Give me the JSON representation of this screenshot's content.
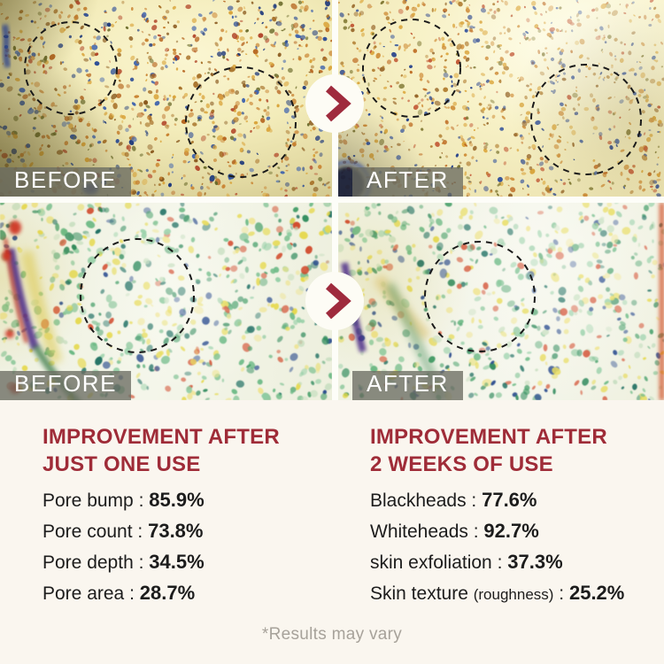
{
  "figures": [
    {
      "label": "BEFORE"
    },
    {
      "label": "AFTER"
    },
    {
      "label": "BEFORE"
    },
    {
      "label": "AFTER"
    }
  ],
  "arrow": {
    "icon": "chevron-right"
  },
  "separator": " : ",
  "panels": {
    "left": {
      "title_line1": "IMPROVEMENT AFTER",
      "title_line2": "JUST ONE USE",
      "rows": [
        {
          "label": "Pore bump",
          "value": "85.9%"
        },
        {
          "label": "Pore count",
          "value": "73.8%"
        },
        {
          "label": "Pore depth",
          "value": "34.5%"
        },
        {
          "label": "Pore area",
          "value": "28.7%"
        }
      ]
    },
    "right": {
      "title_line1": "IMPROVEMENT AFTER",
      "title_line2": "2 WEEKS OF USE",
      "rows": [
        {
          "label": "Blackheads",
          "value": "77.6%"
        },
        {
          "label": "Whiteheads",
          "value": "92.7%"
        },
        {
          "label": "skin exfoliation",
          "value": "37.3%"
        },
        {
          "label": "Skin texture",
          "label_note": "(roughness)",
          "value": "25.2%"
        }
      ]
    }
  },
  "disclaimer": "*Results may vary",
  "colors": {
    "accent_red": "#9f2c38",
    "label_background": "rgba(106,108,98,0.78)",
    "label_text": "#ffffff",
    "stat_text": "#1c1c1c",
    "disclaimer_text": "#a7a29a",
    "page_background": "#faf6ef"
  }
}
